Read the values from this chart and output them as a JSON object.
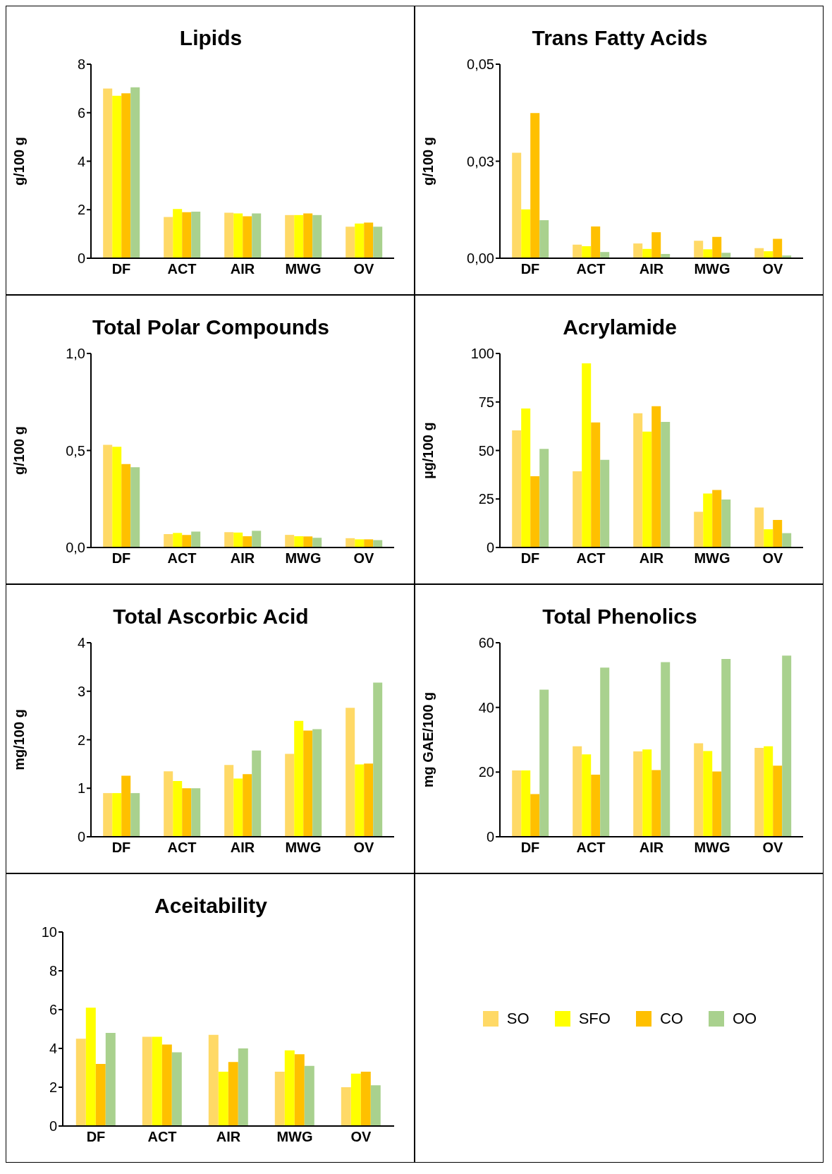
{
  "chart_data": [
    {
      "type": "bar",
      "title": "Lipids",
      "ylabel": "g/100 g",
      "categories": [
        "DF",
        "ACT",
        "AIR",
        "MWG",
        "OV"
      ],
      "ylim": [
        0,
        8
      ],
      "yticks": [
        0,
        2,
        4,
        6,
        8
      ],
      "grid": false,
      "legend": false,
      "series": [
        {
          "color": "#ffd966",
          "values": [
            7.0,
            1.7,
            1.88,
            1.78,
            1.3
          ]
        },
        {
          "color": "#ffff00",
          "values": [
            6.7,
            2.03,
            1.85,
            1.78,
            1.43
          ]
        },
        {
          "color": "#ffc000",
          "values": [
            6.8,
            1.9,
            1.73,
            1.85,
            1.47
          ]
        },
        {
          "color": "#a9d18e",
          "values": [
            7.05,
            1.92,
            1.85,
            1.78,
            1.3
          ]
        }
      ]
    },
    {
      "type": "bar",
      "title": "Trans Fatty Acids",
      "ylabel": "g/100 g",
      "categories": [
        "DF",
        "ACT",
        "AIR",
        "MWG",
        "OV"
      ],
      "ylim": [
        0,
        0.05
      ],
      "yticks": [
        {
          "value": 0,
          "label": "0,00"
        },
        {
          "value": 0.025,
          "label": "0,03"
        },
        {
          "value": 0.05,
          "label": "0,05"
        }
      ],
      "grid": false,
      "legend": false,
      "series": [
        {
          "color": "#ffd966",
          "values": [
            0.0272,
            0.0035,
            0.0038,
            0.0045,
            0.0026
          ]
        },
        {
          "color": "#ffff00",
          "values": [
            0.0126,
            0.0031,
            0.0024,
            0.0023,
            0.0018
          ]
        },
        {
          "color": "#ffc000",
          "values": [
            0.0374,
            0.0082,
            0.0067,
            0.0055,
            0.005
          ]
        },
        {
          "color": "#a9d18e",
          "values": [
            0.0098,
            0.0016,
            0.0011,
            0.0014,
            0.0007
          ]
        }
      ]
    },
    {
      "type": "bar",
      "title": "Total Polar Compounds",
      "ylabel": "g/100 g",
      "categories": [
        "DF",
        "ACT",
        "AIR",
        "MWG",
        "OV"
      ],
      "ylim": [
        0,
        1
      ],
      "yticks": [
        {
          "value": 0,
          "label": "0,0"
        },
        {
          "value": 0.5,
          "label": "0,5"
        },
        {
          "value": 1,
          "label": "1,0"
        }
      ],
      "grid": false,
      "legend": false,
      "series": [
        {
          "color": "#ffd966",
          "values": [
            0.529,
            0.069,
            0.079,
            0.065,
            0.048
          ]
        },
        {
          "color": "#ffff00",
          "values": [
            0.519,
            0.075,
            0.077,
            0.058,
            0.042
          ]
        },
        {
          "color": "#ffc000",
          "values": [
            0.43,
            0.065,
            0.058,
            0.057,
            0.042
          ]
        },
        {
          "color": "#a9d18e",
          "values": [
            0.414,
            0.082,
            0.086,
            0.05,
            0.038
          ]
        }
      ]
    },
    {
      "type": "bar",
      "title": "Acrylamide",
      "ylabel": "µg/100 g",
      "categories": [
        "DF",
        "ACT",
        "AIR",
        "MWG",
        "OV"
      ],
      "ylim": [
        0,
        100
      ],
      "yticks": [
        0,
        25,
        50,
        75,
        100
      ],
      "grid": false,
      "legend": false,
      "series": [
        {
          "color": "#ffd966",
          "values": [
            60.4,
            39.3,
            69.2,
            18.4,
            20.6
          ]
        },
        {
          "color": "#ffff00",
          "values": [
            71.6,
            94.9,
            59.7,
            27.8,
            9.4
          ]
        },
        {
          "color": "#ffc000",
          "values": [
            36.7,
            64.5,
            72.8,
            29.6,
            14.2
          ]
        },
        {
          "color": "#a9d18e",
          "values": [
            50.8,
            45.2,
            64.7,
            24.7,
            7.4
          ]
        }
      ]
    },
    {
      "type": "bar",
      "title": "Total Ascorbic Acid",
      "ylabel": "mg/100 g",
      "categories": [
        "DF",
        "ACT",
        "AIR",
        "MWG",
        "OV"
      ],
      "ylim": [
        0,
        4
      ],
      "yticks": [
        0,
        1,
        2,
        3,
        4
      ],
      "grid": false,
      "legend": false,
      "series": [
        {
          "color": "#ffd966",
          "values": [
            0.9,
            1.35,
            1.48,
            1.71,
            2.66
          ]
        },
        {
          "color": "#ffff00",
          "values": [
            0.9,
            1.15,
            1.2,
            2.39,
            1.49
          ]
        },
        {
          "color": "#ffc000",
          "values": [
            1.26,
            1.0,
            1.29,
            2.19,
            1.51
          ]
        },
        {
          "color": "#a9d18e",
          "values": [
            0.9,
            1.0,
            1.78,
            2.22,
            3.18
          ]
        }
      ]
    },
    {
      "type": "bar",
      "title": "Total Phenolics",
      "ylabel": "mg GAE/100 g",
      "categories": [
        "DF",
        "ACT",
        "AIR",
        "MWG",
        "OV"
      ],
      "ylim": [
        0,
        60
      ],
      "yticks": [
        0,
        20,
        40,
        60
      ],
      "grid": false,
      "legend": false,
      "series": [
        {
          "color": "#ffd966",
          "values": [
            20.5,
            28,
            26.4,
            28.9,
            27.5
          ]
        },
        {
          "color": "#ffff00",
          "values": [
            20.5,
            25.5,
            27,
            26.5,
            28
          ]
        },
        {
          "color": "#ffc000",
          "values": [
            13.2,
            19.2,
            20.6,
            20.2,
            22
          ]
        },
        {
          "color": "#a9d18e",
          "values": [
            45.5,
            52.3,
            54,
            55,
            56
          ]
        }
      ]
    },
    {
      "type": "bar",
      "title": "Aceitability",
      "categories": [
        "DF",
        "ACT",
        "AIR",
        "MWG",
        "OV"
      ],
      "ylim": [
        0,
        10
      ],
      "yticks": [
        0,
        2,
        4,
        6,
        8,
        10
      ],
      "grid": false,
      "legend": "right",
      "series": [
        {
          "name": "SO",
          "color": "#ffd966",
          "values": [
            4.5,
            4.6,
            4.7,
            2.8,
            2.0
          ]
        },
        {
          "name": "SFO",
          "color": "#ffff00",
          "values": [
            6.1,
            4.6,
            2.8,
            3.9,
            2.7
          ]
        },
        {
          "name": "CO",
          "color": "#ffc000",
          "values": [
            3.2,
            4.2,
            3.3,
            3.7,
            2.8
          ]
        },
        {
          "name": "OO",
          "color": "#a9d18e",
          "values": [
            4.8,
            3.8,
            4.0,
            3.1,
            2.1
          ]
        }
      ]
    }
  ]
}
